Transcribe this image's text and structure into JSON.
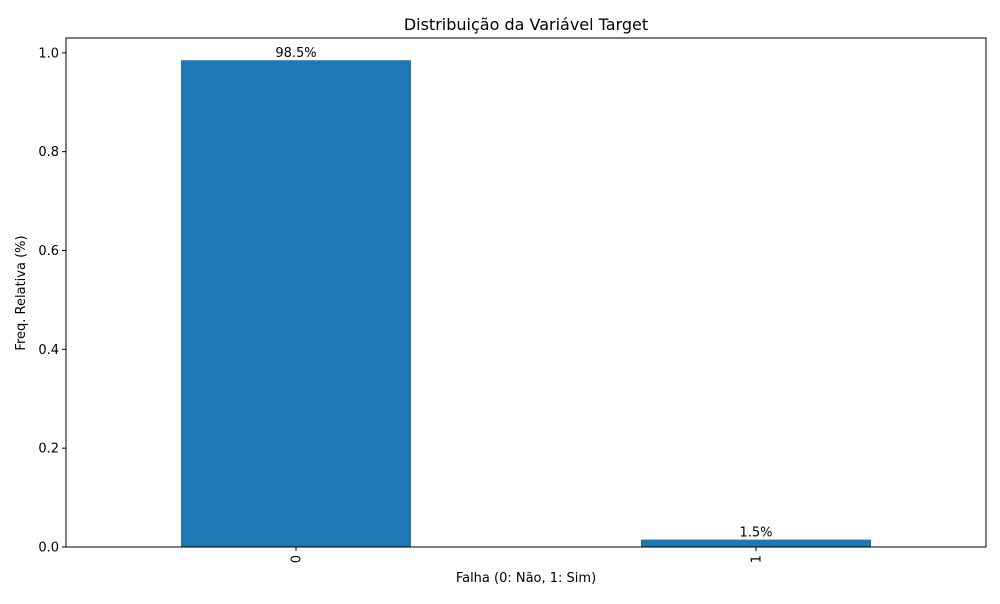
{
  "chart_data": {
    "type": "bar",
    "title": "Distribuição da Variável Target",
    "xlabel": "Falha (0: Não, 1: Sim)",
    "ylabel": "Freq. Relativa (%)",
    "categories": [
      "0",
      "1"
    ],
    "values": [
      0.985,
      0.015
    ],
    "data_labels": [
      "98.5%",
      "1.5%"
    ],
    "ylim": [
      0,
      1.03
    ],
    "yticks": [
      0.0,
      0.2,
      0.4,
      0.6,
      0.8,
      1.0
    ],
    "ytick_labels": [
      "0.0",
      "0.2",
      "0.4",
      "0.6",
      "0.8",
      "1.0"
    ],
    "xtick_rotation": "vertical",
    "grid": false,
    "legend": "none",
    "bar_color": "#1f77b4"
  }
}
